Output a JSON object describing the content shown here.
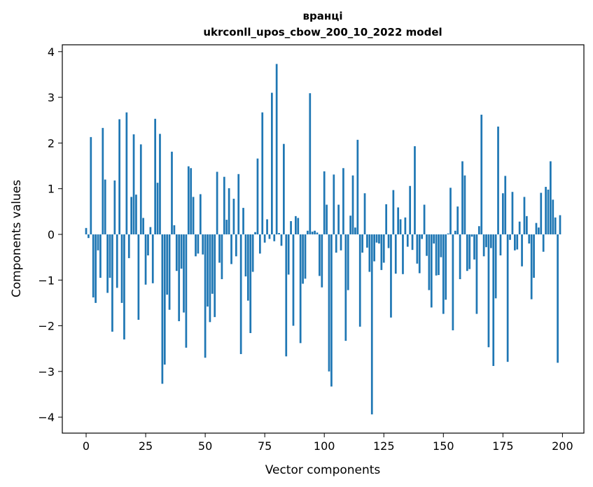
{
  "chart_data": {
    "type": "bar",
    "title_line1": "вранці",
    "title_line2": "ukrconll_upos_cbow_200_10_2022 model",
    "xlabel": "Vector components",
    "ylabel": "Components values",
    "xlim": [
      -10,
      209
    ],
    "ylim": [
      -4.35,
      4.15
    ],
    "xticks": [
      0,
      25,
      50,
      75,
      100,
      125,
      150,
      175,
      200
    ],
    "yticks": [
      -4,
      -3,
      -2,
      -1,
      0,
      1,
      2,
      3,
      4
    ],
    "xtick_labels": [
      "0",
      "25",
      "50",
      "75",
      "100",
      "125",
      "150",
      "175",
      "200"
    ],
    "ytick_labels": [
      "−4",
      "−3",
      "−2",
      "−1",
      "0",
      "1",
      "2",
      "3",
      "4"
    ],
    "grid": false,
    "bar_color": "#1f77b4",
    "values": [
      0.14,
      -0.08,
      2.13,
      -1.38,
      -1.5,
      -0.35,
      -0.95,
      2.33,
      1.2,
      -1.28,
      -0.95,
      -2.13,
      1.18,
      -1.17,
      2.52,
      -1.5,
      -2.3,
      2.67,
      -0.52,
      0.82,
      2.19,
      0.87,
      -1.87,
      1.97,
      0.36,
      -1.1,
      -0.46,
      0.16,
      -1.07,
      2.53,
      1.13,
      2.2,
      -3.27,
      -2.85,
      -1.32,
      -1.65,
      1.81,
      0.2,
      -0.8,
      -1.9,
      -0.75,
      -1.71,
      -2.48,
      1.49,
      1.45,
      0.82,
      -0.48,
      -0.42,
      0.88,
      -0.44,
      -2.7,
      -1.58,
      -1.92,
      -1.3,
      -1.81,
      1.37,
      -0.62,
      -0.98,
      1.26,
      0.32,
      1.01,
      -0.65,
      0.78,
      -0.48,
      1.32,
      -2.62,
      0.58,
      -0.92,
      -1.45,
      -2.16,
      -0.82,
      0.05,
      1.66,
      -0.42,
      2.67,
      -0.18,
      0.33,
      -0.1,
      3.1,
      -0.15,
      3.73,
      0.03,
      -0.25,
      1.98,
      -2.67,
      -0.88,
      0.29,
      -2.0,
      0.4,
      0.36,
      -2.38,
      -1.08,
      -0.97,
      0.08,
      3.09,
      0.06,
      0.08,
      0.04,
      -0.91,
      -1.16,
      1.38,
      0.65,
      -3.0,
      -3.33,
      1.31,
      -0.4,
      0.65,
      -0.35,
      1.45,
      -2.33,
      -1.22,
      0.41,
      1.29,
      0.15,
      2.07,
      -2.02,
      -0.4,
      0.9,
      -0.29,
      -0.82,
      -3.94,
      -0.59,
      -0.18,
      -0.2,
      -0.78,
      -0.62,
      0.66,
      -0.3,
      -1.82,
      0.97,
      -0.86,
      0.59,
      0.33,
      -0.87,
      0.37,
      -0.27,
      1.06,
      -0.34,
      1.93,
      -0.64,
      -0.85,
      -0.1,
      0.65,
      -0.47,
      -1.22,
      -1.6,
      -0.2,
      -0.9,
      -0.89,
      -0.5,
      -1.74,
      -1.43,
      0.02,
      1.02,
      -2.1,
      0.08,
      0.61,
      -0.98,
      1.6,
      1.29,
      -0.8,
      -0.76,
      -0.05,
      -0.55,
      -1.74,
      0.18,
      2.62,
      -0.48,
      -0.28,
      -2.47,
      -0.3,
      -2.88,
      -1.4,
      2.36,
      -0.46,
      0.9,
      1.28,
      -2.79,
      -0.12,
      0.93,
      -0.35,
      -0.33,
      0.28,
      -0.7,
      0.82,
      0.4,
      -0.2,
      -1.42,
      -0.95,
      0.25,
      0.15,
      0.91,
      -0.38,
      1.04,
      0.98,
      1.6,
      0.76,
      0.37,
      -2.81,
      0.42
    ]
  }
}
